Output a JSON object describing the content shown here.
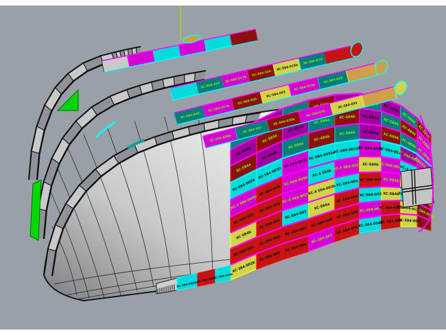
{
  "viewport": {
    "background": "#9aa0a8",
    "frame_color": "#ffffff",
    "axis_color": "#b8d800"
  },
  "colors": {
    "magenta": "#d400d4",
    "magentaBright": "#ff00ff",
    "purple": "#a100a1",
    "teal": "#007d7d",
    "cyan": "#00dcdc",
    "cyanBright": "#00ffff",
    "red": "#c41414",
    "redBright": "#ff0000",
    "darkred": "#8e0f0f",
    "yellow": "#d2d24b",
    "yellowBright": "#ffff00",
    "green": "#00d800",
    "tan": "#cf9f4a",
    "gray": "#c9c9c9",
    "labelGreen": "#8cf000",
    "labelBlack": "#101010"
  },
  "board": {
    "rows": [
      [
        [
          "teal",
          "XC-584a",
          "g"
        ],
        [
          "purple",
          "XC-584b",
          "k"
        ],
        [
          "teal",
          "XC-4B4a",
          "g"
        ],
        [
          "darkred",
          "XC-584b",
          "g"
        ],
        [
          "purple",
          "XC-584a",
          "k"
        ],
        [
          "teal",
          "XC-584b",
          "g"
        ],
        [
          "purple",
          "XC-4B4b",
          "k"
        ],
        [
          "teal",
          "XC-584a",
          "g"
        ],
        [
          "darkred",
          "XC-584b",
          "g"
        ]
      ],
      [
        [
          "purple",
          "XC-584b",
          "k"
        ],
        [
          "darkred",
          "XC-584a",
          "g"
        ],
        [
          "purple",
          "XC-4B4b",
          "k"
        ],
        [
          "teal",
          "XC-584a",
          "g"
        ],
        [
          "darkred",
          "XC-584b",
          "g"
        ],
        [
          "purple",
          "XC-584a",
          "k"
        ],
        [
          "teal",
          "XC-584b",
          "g"
        ],
        [
          "darkred",
          "XC-4B4a",
          "g"
        ],
        [
          "magenta",
          "XC-584b",
          "g"
        ]
      ],
      [
        [
          "darkred",
          "XC-584a",
          "g"
        ],
        [
          "purple",
          "XC-584b",
          "k"
        ],
        [
          "teal",
          "XC-584a",
          "g"
        ],
        [
          "darkred",
          "XC-4B4b",
          "g"
        ],
        [
          "teal",
          "XC-584b",
          "g"
        ],
        [
          "purple",
          "XC-584a",
          "k"
        ],
        [
          "darkred",
          "XC-584b",
          "g"
        ],
        [
          "teal",
          "XC-4B4a",
          "g"
        ],
        [
          "magenta",
          "XC-584a",
          "g"
        ]
      ],
      [
        [
          "cyan",
          "XC-584-0026",
          "k"
        ],
        [
          "cyan",
          "XC-584-0030",
          "k"
        ],
        [
          "magenta",
          "XC-584-0031",
          "k"
        ],
        [
          "cyan",
          "XC-584-0032a",
          "k"
        ],
        [
          "cyan",
          "XC-584-0033a",
          "k"
        ],
        [
          "magenta",
          "XC-584-0034",
          "k"
        ],
        [
          "cyan",
          "XC-584-0035",
          "k"
        ],
        [
          "purple",
          "XC-584-0036",
          "g"
        ],
        [
          "magenta",
          "XC-584-0037",
          "g"
        ]
      ],
      [
        [
          "magenta",
          "XC-7 584-004b",
          "g"
        ],
        [
          "red",
          "XC-584-006",
          "k"
        ],
        [
          "magenta",
          "XC-584-003b",
          "g"
        ],
        [
          "cyan",
          "XC-3 584b",
          "k"
        ],
        [
          "magenta",
          "XC-7 584-002b",
          "g"
        ],
        [
          "yellow",
          "XC-584b",
          "k"
        ],
        [
          "magenta",
          "XC-584-002b",
          "g"
        ],
        [
          "cyan",
          "XC-3 584a",
          "k"
        ],
        [
          "magenta",
          "XC-7 584-003b",
          "g"
        ]
      ],
      [
        [
          "red",
          "XC-584-001",
          "k"
        ],
        [
          "red",
          "XC-584-002",
          "k"
        ],
        [
          "magenta",
          "XC-4 584-002b",
          "g"
        ],
        [
          "yellow",
          "XC-4 584-003b",
          "k"
        ],
        [
          "cyan",
          "XC-584-004",
          "k"
        ],
        [
          "red",
          "XC-584-003",
          "k"
        ],
        [
          "magenta",
          "XC-584b",
          "g"
        ],
        [
          "yellow",
          "XC-584a",
          "k"
        ],
        [
          "red",
          "XC-584-005",
          "k"
        ]
      ],
      [
        [
          "yellow",
          "XC-584b",
          "k"
        ],
        [
          "red",
          "XC-584-004",
          "k"
        ],
        [
          "cyan",
          "XC-584-003",
          "k"
        ],
        [
          "yellow",
          "XC-584a",
          "k"
        ],
        [
          "red",
          "XC-584-005",
          "k"
        ],
        [
          "cyan",
          "XC-584-002",
          "k"
        ],
        [
          "yellow",
          "XC-584b",
          "k"
        ],
        [
          "cyan",
          "XC-584-001",
          "k"
        ],
        [
          "darkred",
          "XC-584a",
          "g"
        ]
      ],
      [
        [
          "red",
          "XC-384-001",
          "k"
        ],
        [
          "red",
          "XC-384-002",
          "k"
        ],
        [
          "red",
          "XC-384-003",
          "k"
        ],
        [
          "red",
          "XC-384-004",
          "k"
        ],
        [
          "red",
          "XC-384-005",
          "k"
        ],
        [
          "magenta",
          "XC-384-006",
          "g"
        ],
        [
          "red",
          "XC-384-002b",
          "k"
        ],
        [
          "yellow",
          "XC-384-003b",
          "k"
        ],
        [
          "darkred",
          "XC-384-004b",
          "g"
        ]
      ],
      [
        [
          "yellow",
          "XC-384-002b",
          "k"
        ],
        [
          "red",
          "XC-384-003",
          "k"
        ],
        [
          "red",
          "XC-384-004",
          "k"
        ],
        [
          "magenta",
          "XC-384-007",
          "g"
        ],
        [
          "red",
          "XC-384-005",
          "k"
        ],
        [
          "cyan",
          "XC-384-004b",
          "k"
        ],
        [
          "red",
          "XC-384-006",
          "k"
        ],
        [
          "yellow",
          "XC-384-008",
          "k"
        ],
        [
          "darkred",
          "",
          "g"
        ]
      ]
    ]
  },
  "strips": [
    [
      [
        "gray",
        ""
      ],
      [
        "magenta",
        ""
      ],
      [
        "cyan",
        ""
      ],
      [
        "magenta",
        ""
      ],
      [
        "cyan",
        ""
      ],
      [
        "darkred",
        ""
      ]
    ],
    [
      [
        "cyan",
        ""
      ],
      [
        "teal",
        "XC-584-018",
        "g"
      ],
      [
        "magenta",
        "XC-584-017b",
        "g"
      ],
      [
        "darkred",
        "XC-584-016",
        "g"
      ],
      [
        "yellow",
        "XC-584-015b",
        "k"
      ],
      [
        "teal",
        "XC-584-014",
        "g"
      ],
      [
        "red",
        "",
        "g"
      ]
    ],
    [
      [
        "teal",
        "XC-584-028",
        "g"
      ],
      [
        "magenta",
        "XC-584-027b",
        "g"
      ],
      [
        "darkred",
        "XC-584-026",
        "g"
      ],
      [
        "yellow",
        "XC-584-025",
        "k"
      ],
      [
        "magenta",
        "XC-584-024b",
        "g"
      ],
      [
        "teal",
        "XC-584-023",
        "g"
      ],
      [
        "tan",
        "",
        "g"
      ]
    ],
    [
      [
        "magenta",
        "XC-584-038b",
        "g"
      ],
      [
        "teal",
        "XC-584-037",
        "g"
      ],
      [
        "darkred",
        "XC-584-036b",
        "g"
      ],
      [
        "magenta",
        "XC-584-035",
        "g"
      ],
      [
        "yellow",
        "XC-584-034",
        "k"
      ],
      [
        "tan",
        "",
        "g"
      ]
    ]
  ],
  "bottom_band": [
    [
      "hatch",
      "",
      ""
    ],
    [
      "cyan",
      "XC-3B4-0005a",
      "k"
    ],
    [
      "red",
      "XC-384-005b",
      "k"
    ],
    [
      "cyan",
      "XC-384-004b",
      "k"
    ]
  ],
  "tips": [
    "tan",
    "red",
    "tan",
    "yellow"
  ]
}
